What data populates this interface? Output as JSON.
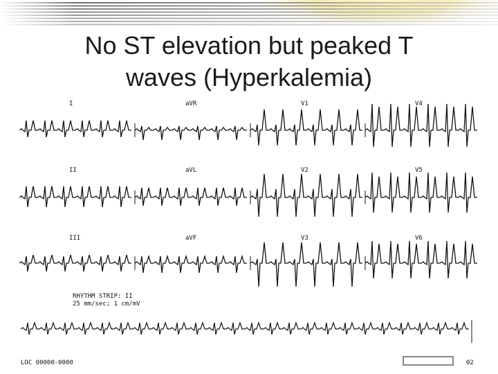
{
  "header": {
    "title_lines": [
      "No ST elevation but peaked T",
      "waves (Hyperkalemia)"
    ]
  },
  "ecg": {
    "leads": [
      [
        "I",
        "aVR",
        "V1",
        "V4"
      ],
      [
        "II",
        "aVL",
        "V2",
        "V5"
      ],
      [
        "III",
        "aVF",
        "V3",
        "V6"
      ]
    ],
    "rhythm_strip": [
      "RHYTHM STRIP: II",
      "25 mm/sec; 1 cm/mV"
    ]
  },
  "footer": {
    "id": "LOC 00000-0000",
    "page": "02"
  }
}
